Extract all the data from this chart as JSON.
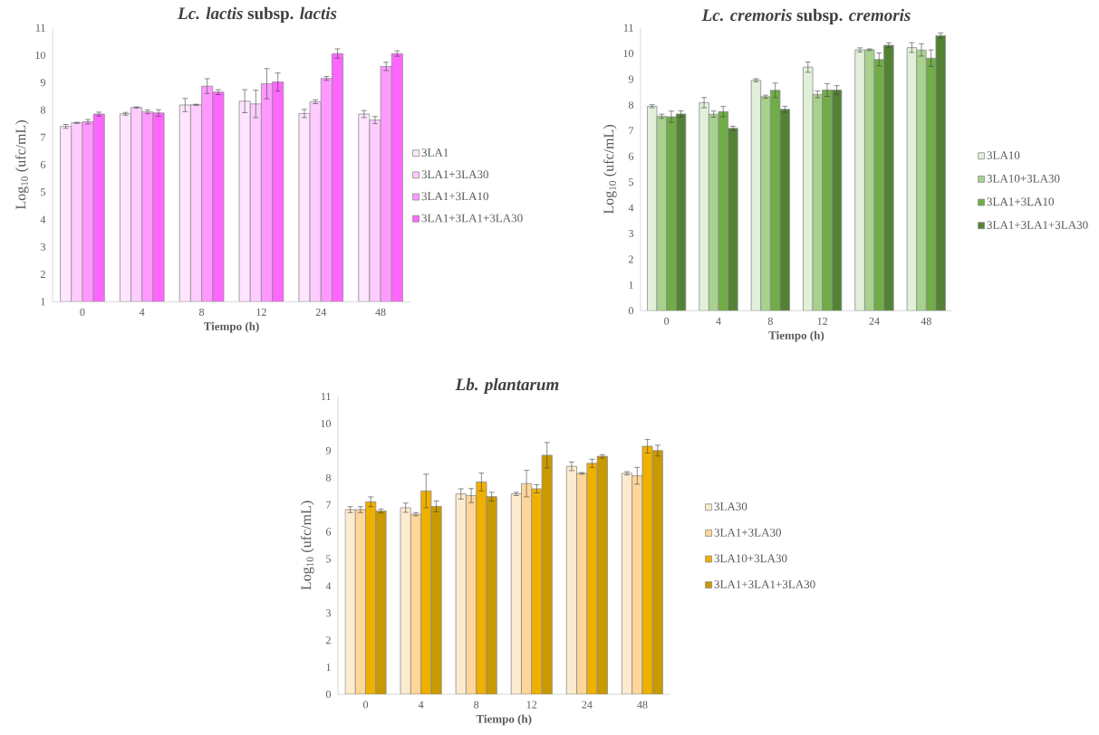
{
  "chart_data": [
    {
      "type": "bar",
      "title": "*Lc. lactis* subsp. *lactis*",
      "xlabel": "Tiempo (h)",
      "ylabel": "Log$_{10}$ (ufc/mL)",
      "categories": [
        "0",
        "4",
        "8",
        "12",
        "24",
        "48"
      ],
      "ylim": [
        1,
        11
      ],
      "yticks": [
        1,
        2,
        3,
        4,
        5,
        6,
        7,
        8,
        9,
        10,
        11
      ],
      "legend": "right",
      "series": [
        {
          "name": "3LA1",
          "color": "#ffe5ff",
          "values": [
            7.4,
            7.86,
            8.18,
            8.32,
            7.87,
            7.85
          ],
          "errors": [
            0.07,
            0.05,
            0.24,
            0.42,
            0.15,
            0.13
          ]
        },
        {
          "name": "3LA1+3LA30",
          "color": "#ffccff",
          "values": [
            7.53,
            8.09,
            8.19,
            8.22,
            8.3,
            7.63
          ],
          "errors": [
            0.02,
            0.02,
            0.02,
            0.5,
            0.07,
            0.13
          ]
        },
        {
          "name": "3LA1+3LA10",
          "color": "#ff99ff",
          "values": [
            7.57,
            7.93,
            8.87,
            8.96,
            9.15,
            9.59
          ],
          "errors": [
            0.08,
            0.07,
            0.27,
            0.55,
            0.07,
            0.15
          ]
        },
        {
          "name": "3LA1+3LA1+3LA30",
          "color": "#ff66ff",
          "values": [
            7.85,
            7.89,
            8.65,
            9.02,
            10.06,
            10.06
          ],
          "errors": [
            0.07,
            0.12,
            0.09,
            0.33,
            0.17,
            0.1
          ]
        }
      ]
    },
    {
      "type": "bar",
      "title": "*Lc. cremoris* subsp. *cremoris*",
      "xlabel": "Tiempo (h)",
      "ylabel": "Log$_{10}$ (ufc/mL)",
      "categories": [
        "0",
        "4",
        "8",
        "12",
        "24",
        "48"
      ],
      "ylim": [
        0,
        11
      ],
      "yticks": [
        0,
        1,
        2,
        3,
        4,
        5,
        6,
        7,
        8,
        9,
        10,
        11
      ],
      "legend": "right",
      "series": [
        {
          "name": "3LA10",
          "color": "#e2f0d9",
          "values": [
            7.95,
            8.09,
            8.96,
            9.47,
            10.14,
            10.23
          ],
          "errors": [
            0.06,
            0.2,
            0.06,
            0.2,
            0.08,
            0.19
          ]
        },
        {
          "name": "3LA10+3LA30",
          "color": "#a9d18e",
          "values": [
            7.56,
            7.64,
            8.32,
            8.41,
            10.15,
            10.14
          ],
          "errors": [
            0.08,
            0.12,
            0.06,
            0.13,
            0.03,
            0.24
          ]
        },
        {
          "name": "3LA1+3LA10",
          "color": "#70ad47",
          "values": [
            7.54,
            7.74,
            8.57,
            8.58,
            9.77,
            9.82
          ],
          "errors": [
            0.22,
            0.2,
            0.28,
            0.25,
            0.25,
            0.32
          ]
        },
        {
          "name": "3LA1+3LA1+3LA30",
          "color": "#548235",
          "values": [
            7.65,
            7.09,
            7.83,
            8.58,
            10.32,
            10.7
          ],
          "errors": [
            0.12,
            0.08,
            0.12,
            0.17,
            0.1,
            0.1
          ]
        }
      ]
    },
    {
      "type": "bar",
      "title": "*Lb. plantarum*",
      "xlabel": "Tiempo (h)",
      "ylabel": "Log$_{10}$ (ufc/mL)",
      "categories": [
        "0",
        "4",
        "8",
        "12",
        "24",
        "48"
      ],
      "ylim": [
        0,
        11
      ],
      "yticks": [
        0,
        1,
        2,
        3,
        4,
        5,
        6,
        7,
        8,
        9,
        10,
        11
      ],
      "legend": "right",
      "series": [
        {
          "name": "3LA30",
          "color": "#fdebd0",
          "values": [
            6.82,
            6.89,
            7.4,
            7.4,
            8.42,
            8.16
          ],
          "errors": [
            0.11,
            0.17,
            0.19,
            0.06,
            0.16,
            0.06
          ]
        },
        {
          "name": "3LA1+3LA30",
          "color": "#ffd699",
          "values": [
            6.82,
            6.65,
            7.34,
            7.78,
            8.16,
            8.07
          ],
          "errors": [
            0.11,
            0.06,
            0.26,
            0.49,
            0.03,
            0.31
          ]
        },
        {
          "name": "3LA10+3LA30",
          "color": "#f0b000",
          "values": [
            7.11,
            7.51,
            7.84,
            7.59,
            8.53,
            9.16
          ],
          "errors": [
            0.18,
            0.62,
            0.33,
            0.15,
            0.15,
            0.25
          ]
        },
        {
          "name": "3LA1+3LA1+3LA30",
          "color": "#c99a00",
          "values": [
            6.77,
            6.94,
            7.3,
            8.83,
            8.79,
            9.0
          ],
          "errors": [
            0.07,
            0.2,
            0.16,
            0.47,
            0.06,
            0.2
          ]
        }
      ]
    }
  ]
}
